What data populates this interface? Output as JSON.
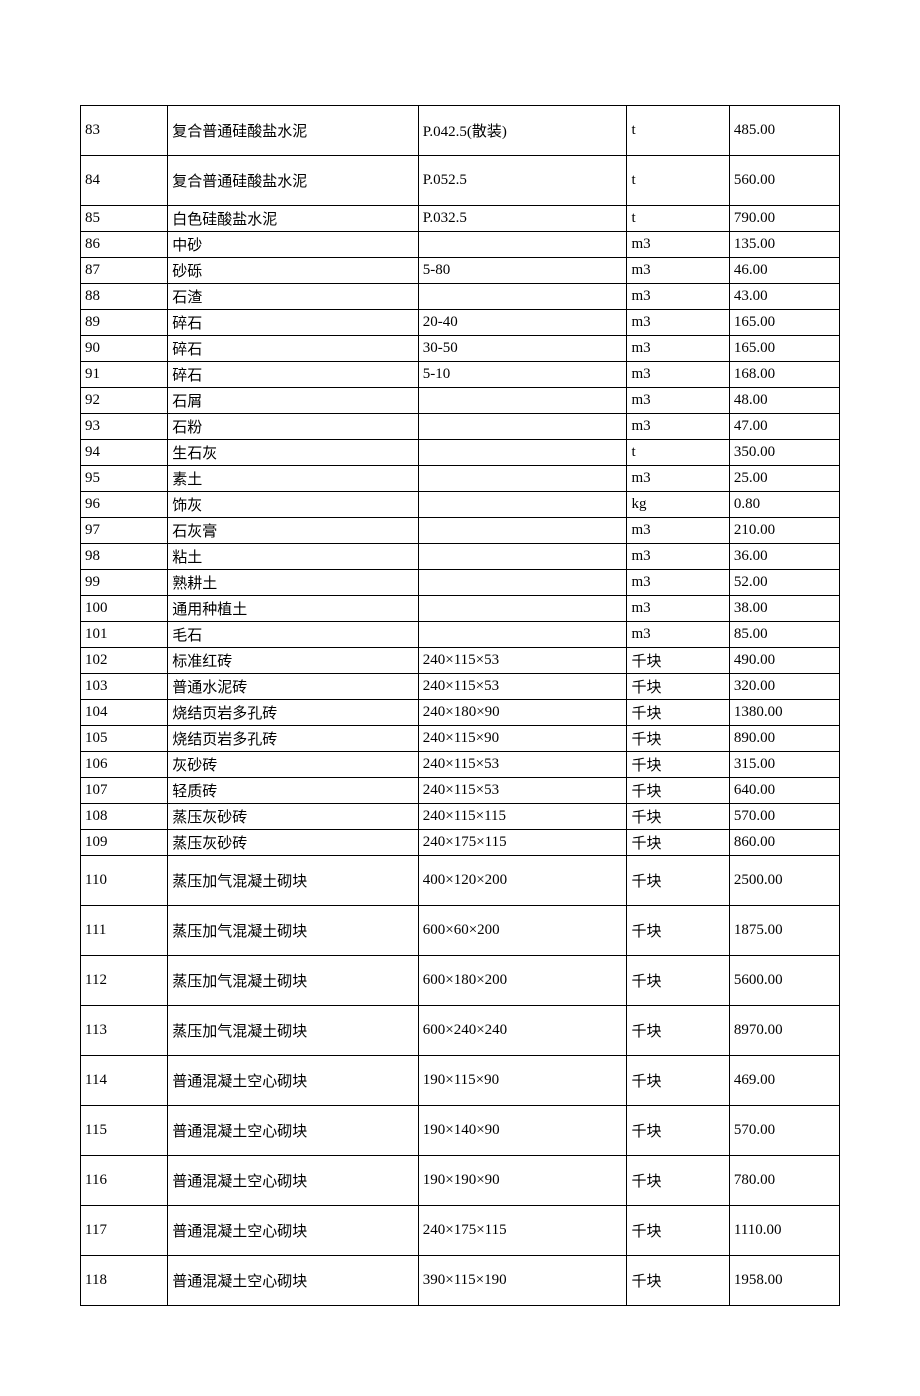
{
  "table": {
    "columns": [
      {
        "key": "num",
        "width": "11.5%",
        "align": "left"
      },
      {
        "key": "name",
        "width": "33%",
        "align": "left"
      },
      {
        "key": "spec",
        "width": "27.5%",
        "align": "left"
      },
      {
        "key": "unit",
        "width": "13.5%",
        "align": "left"
      },
      {
        "key": "price",
        "width": "14.5%",
        "align": "left"
      }
    ],
    "border_color": "#000000",
    "font_family": "SimSun",
    "font_size": 15,
    "text_color": "#000000",
    "background_color": "#ffffff",
    "rows": [
      {
        "num": "83",
        "name": "复合普通硅酸盐水泥",
        "spec": "P.042.5(散装)",
        "unit": "t",
        "price": "485.00",
        "tall": true
      },
      {
        "num": "84",
        "name": "复合普通硅酸盐水泥",
        "spec": "P.052.5",
        "unit": "t",
        "price": "560.00",
        "tall": true
      },
      {
        "num": "85",
        "name": "白色硅酸盐水泥",
        "spec": "P.032.5",
        "unit": "t",
        "price": "790.00",
        "tall": false
      },
      {
        "num": "86",
        "name": "中砂",
        "spec": "",
        "unit": "m3",
        "price": "135.00",
        "tall": false
      },
      {
        "num": "87",
        "name": "砂砾",
        "spec": "5-80",
        "unit": "m3",
        "price": "46.00",
        "tall": false
      },
      {
        "num": "88",
        "name": "石渣",
        "spec": "",
        "unit": "m3",
        "price": "43.00",
        "tall": false
      },
      {
        "num": "89",
        "name": "碎石",
        "spec": "20-40",
        "unit": "m3",
        "price": "165.00",
        "tall": false
      },
      {
        "num": "90",
        "name": "碎石",
        "spec": "30-50",
        "unit": "m3",
        "price": "165.00",
        "tall": false
      },
      {
        "num": "91",
        "name": "碎石",
        "spec": "5-10",
        "unit": "m3",
        "price": "168.00",
        "tall": false
      },
      {
        "num": "92",
        "name": "石屑",
        "spec": "",
        "unit": "m3",
        "price": "48.00",
        "tall": false
      },
      {
        "num": "93",
        "name": "石粉",
        "spec": "",
        "unit": "m3",
        "price": "47.00",
        "tall": false
      },
      {
        "num": "94",
        "name": "生石灰",
        "spec": "",
        "unit": "t",
        "price": "350.00",
        "tall": false
      },
      {
        "num": "95",
        "name": "素土",
        "spec": "",
        "unit": "m3",
        "price": "25.00",
        "tall": false
      },
      {
        "num": "96",
        "name": "饰灰",
        "spec": "",
        "unit": "kg",
        "price": "0.80",
        "tall": false
      },
      {
        "num": "97",
        "name": "石灰膏",
        "spec": "",
        "unit": "m3",
        "price": "210.00",
        "tall": false
      },
      {
        "num": "98",
        "name": "粘土",
        "spec": "",
        "unit": "m3",
        "price": "36.00",
        "tall": false
      },
      {
        "num": "99",
        "name": "熟耕土",
        "spec": "",
        "unit": "m3",
        "price": "52.00",
        "tall": false
      },
      {
        "num": "100",
        "name": "通用种植土",
        "spec": "",
        "unit": "m3",
        "price": "38.00",
        "tall": false
      },
      {
        "num": "101",
        "name": "毛石",
        "spec": "",
        "unit": "m3",
        "price": "85.00",
        "tall": false
      },
      {
        "num": "102",
        "name": "标准红砖",
        "spec": "240×115×53",
        "unit": "千块",
        "price": "490.00",
        "tall": false
      },
      {
        "num": "103",
        "name": "普通水泥砖",
        "spec": "240×115×53",
        "unit": "千块",
        "price": "320.00",
        "tall": false
      },
      {
        "num": "104",
        "name": "烧结页岩多孔砖",
        "spec": "240×180×90",
        "unit": "千块",
        "price": "1380.00",
        "tall": false
      },
      {
        "num": "105",
        "name": "烧结页岩多孔砖",
        "spec": "240×115×90",
        "unit": "千块",
        "price": "890.00",
        "tall": false
      },
      {
        "num": "106",
        "name": "灰砂砖",
        "spec": "240×115×53",
        "unit": "千块",
        "price": "315.00",
        "tall": false
      },
      {
        "num": "107",
        "name": "轻质砖",
        "spec": "240×115×53",
        "unit": "千块",
        "price": "640.00",
        "tall": false
      },
      {
        "num": "108",
        "name": "蒸压灰砂砖",
        "spec": "240×115×115",
        "unit": "千块",
        "price": "570.00",
        "tall": false
      },
      {
        "num": "109",
        "name": "蒸压灰砂砖",
        "spec": "240×175×115",
        "unit": "千块",
        "price": "860.00",
        "tall": false
      },
      {
        "num": "110",
        "name": "蒸压加气混凝土砌块",
        "spec": "400×120×200",
        "unit": "千块",
        "price": "2500.00",
        "tall": true
      },
      {
        "num": "111",
        "name": "蒸压加气混凝土砌块",
        "spec": "600×60×200",
        "unit": "千块",
        "price": "1875.00",
        "tall": true
      },
      {
        "num": "112",
        "name": "蒸压加气混凝土砌块",
        "spec": "600×180×200",
        "unit": "千块",
        "price": "5600.00",
        "tall": true
      },
      {
        "num": "113",
        "name": "蒸压加气混凝土砌块",
        "spec": "600×240×240",
        "unit": "千块",
        "price": "8970.00",
        "tall": true
      },
      {
        "num": "114",
        "name": "普通混凝土空心砌块",
        "spec": "190×115×90",
        "unit": "千块",
        "price": "469.00",
        "tall": true
      },
      {
        "num": "115",
        "name": "普通混凝土空心砌块",
        "spec": "190×140×90",
        "unit": "千块",
        "price": "570.00",
        "tall": true
      },
      {
        "num": "116",
        "name": "普通混凝土空心砌块",
        "spec": "190×190×90",
        "unit": "千块",
        "price": "780.00",
        "tall": true
      },
      {
        "num": "117",
        "name": "普通混凝土空心砌块",
        "spec": "240×175×115",
        "unit": "千块",
        "price": "1110.00",
        "tall": true
      },
      {
        "num": "118",
        "name": "普通混凝土空心砌块",
        "spec": "390×115×190",
        "unit": "千块",
        "price": "1958.00",
        "tall": true
      }
    ]
  }
}
